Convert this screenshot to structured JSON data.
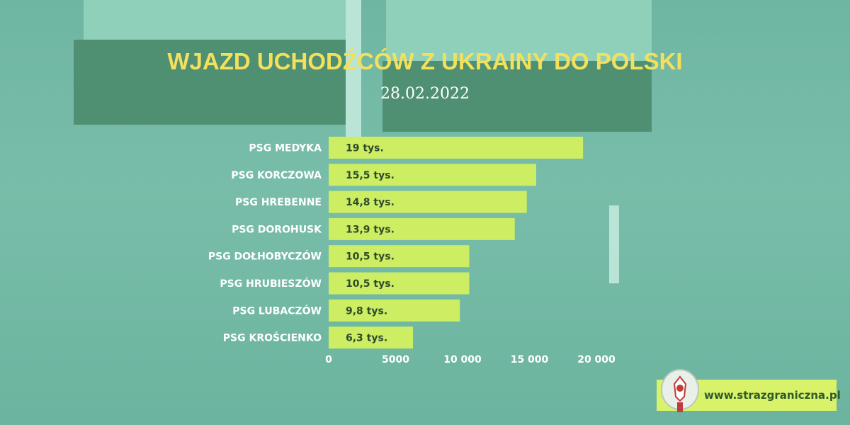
{
  "title": "WJAZD UCHODŹCÓW Z UKRAINY DO POLSKI",
  "date": "28.02.2022",
  "website": "www.strazgraniczna.pl",
  "colors": {
    "bar": "#cdee63",
    "title": "#f3e05c",
    "background": "#72b8a4"
  },
  "icons": {
    "logo": "border-guard-emblem-icon"
  },
  "chart_data": {
    "type": "bar",
    "orientation": "horizontal",
    "categories": [
      "PSG MEDYKA",
      "PSG KORCZOWA",
      "PSG HREBENNE",
      "PSG DOROHUSK",
      "PSG DOŁHOBYCZÓW",
      "PSG HRUBIESZÓW",
      "PSG LUBACZÓW",
      "PSG KROŚCIENKO"
    ],
    "values": [
      19000,
      15500,
      14800,
      13900,
      10500,
      10500,
      9800,
      6300
    ],
    "data_labels": [
      "19  tys.",
      "15,5  tys.",
      "14,8  tys.",
      "13,9  tys.",
      "10,5  tys.",
      "10,5  tys.",
      "9,8  tys.",
      "6,3  tys."
    ],
    "xticks": [
      0,
      5000,
      10000,
      15000,
      20000
    ],
    "xtick_labels": [
      "0",
      "5000",
      "10 000",
      "15 000",
      "20 000"
    ],
    "xlim": [
      0,
      20000
    ],
    "grid": false,
    "legend": "none"
  }
}
